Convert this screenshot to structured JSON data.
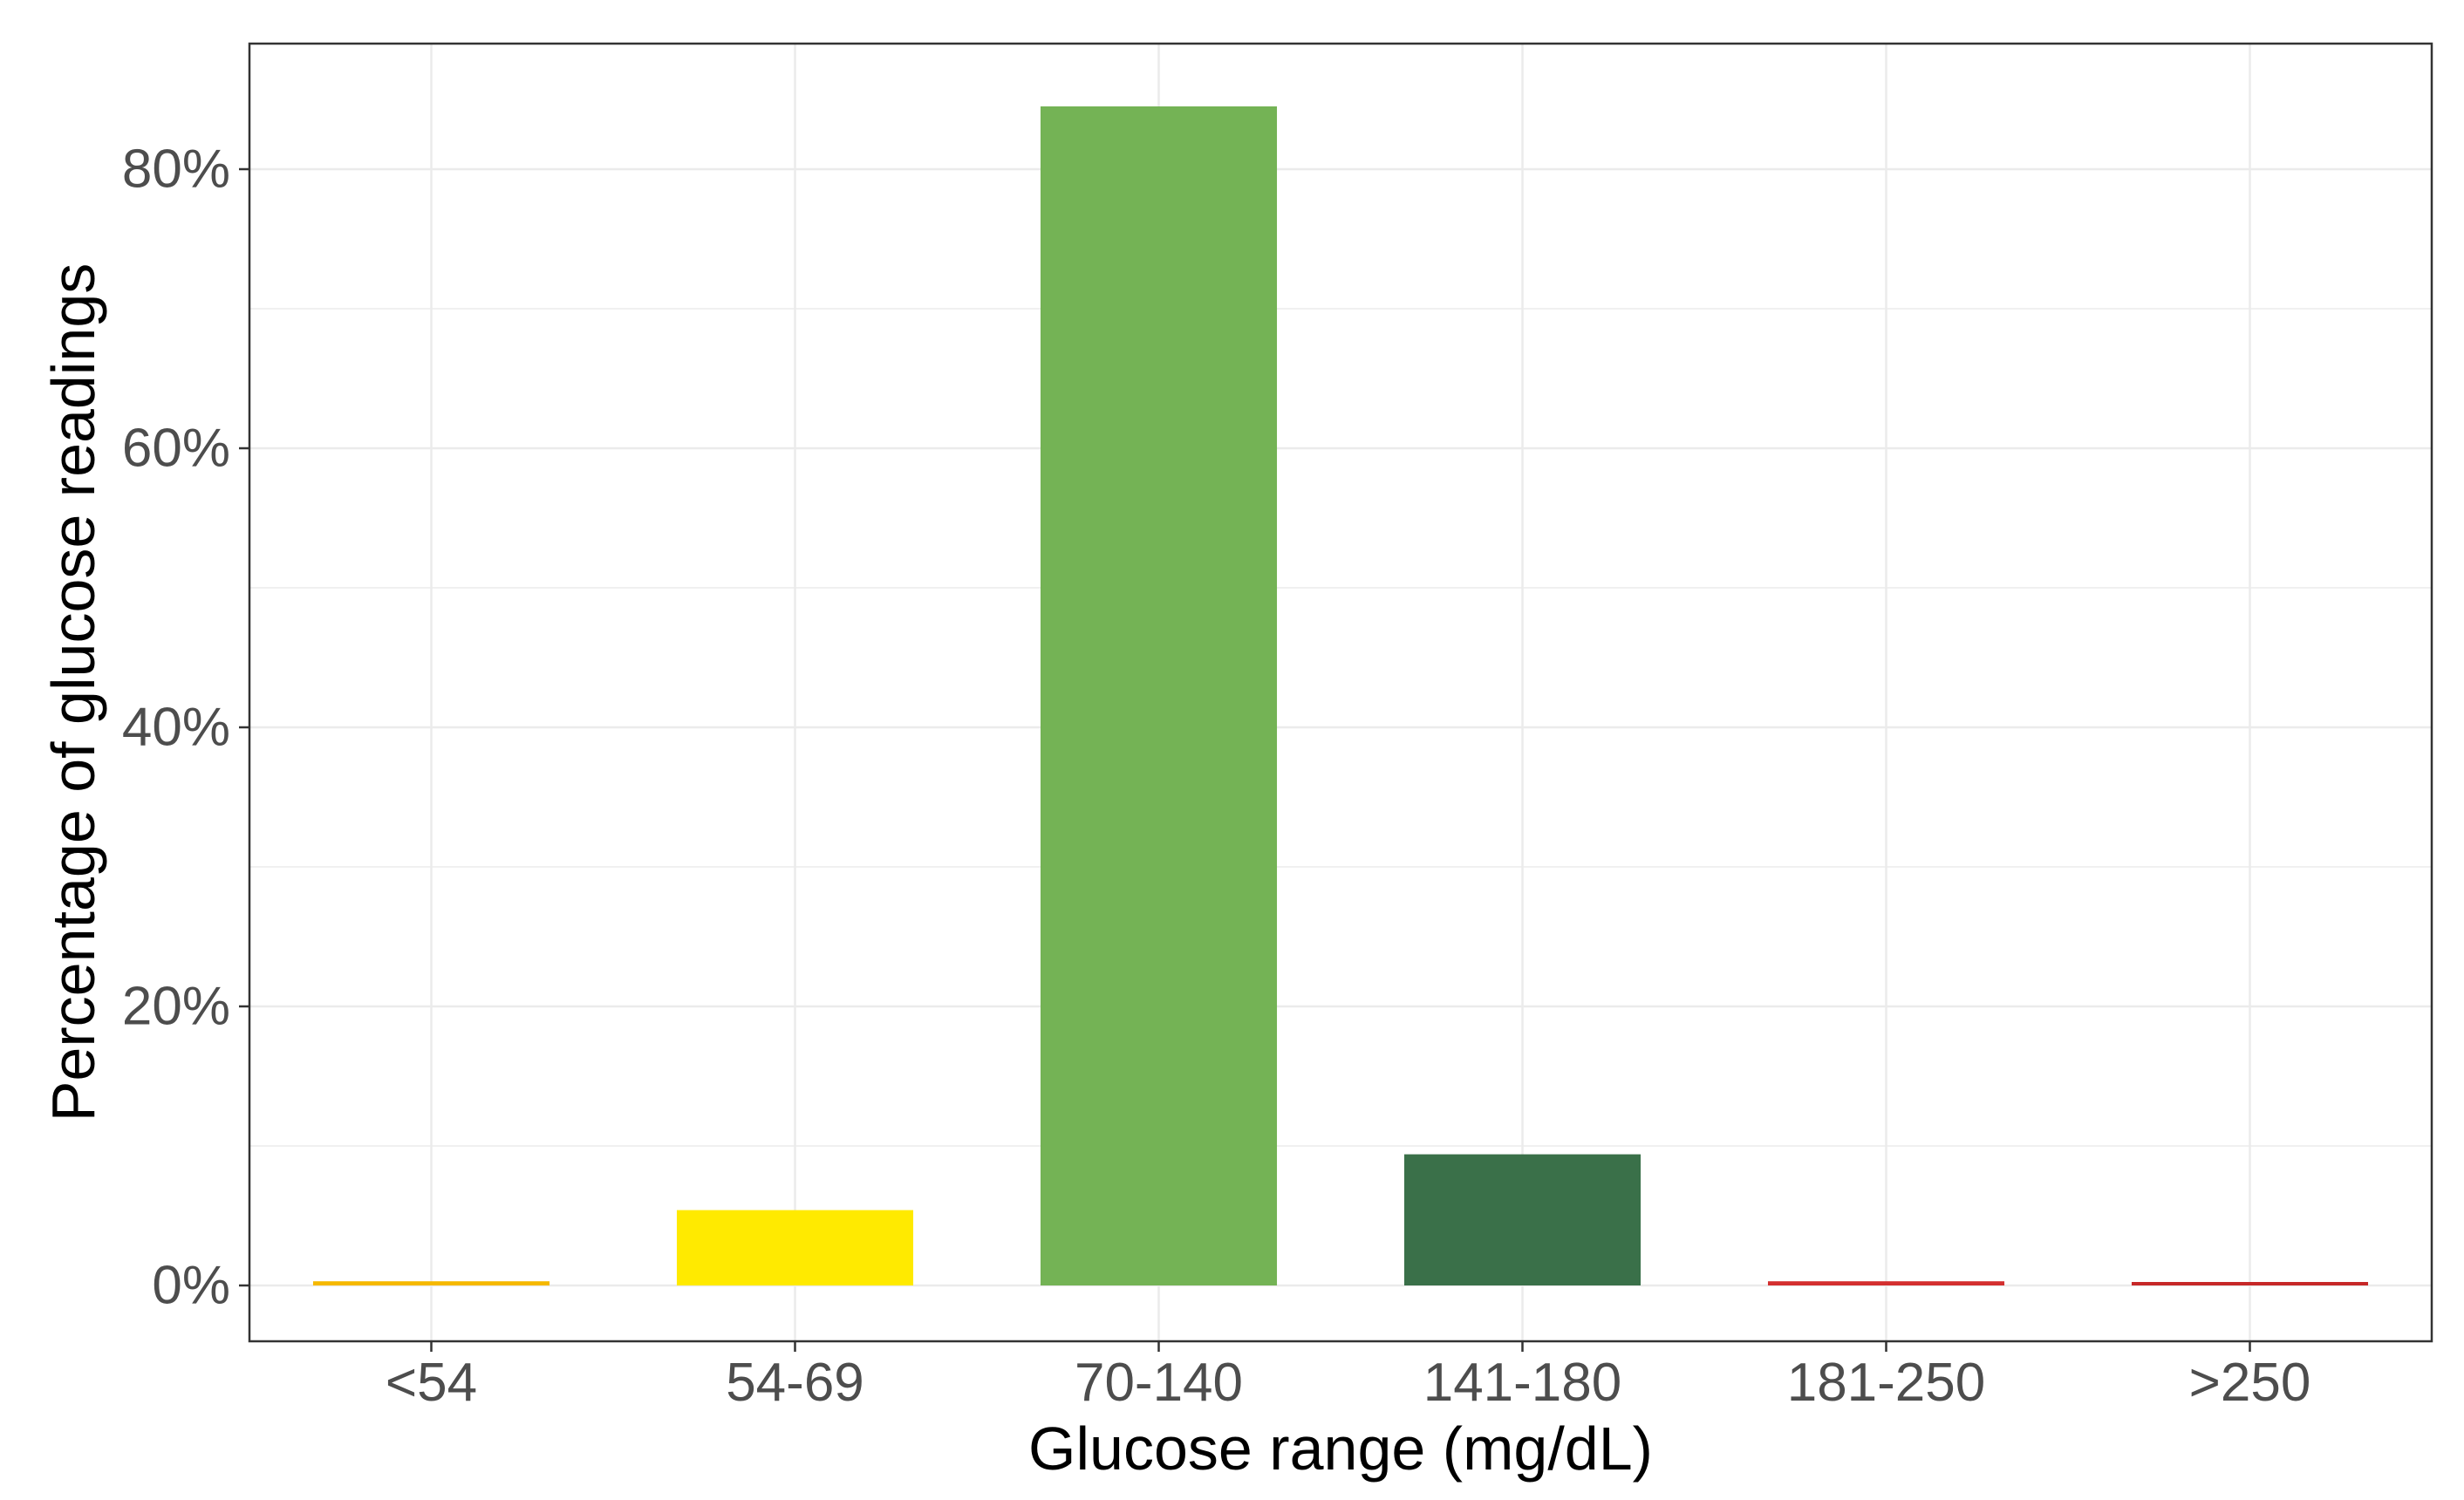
{
  "chart_data": {
    "type": "bar",
    "title": "",
    "xlabel": "Glucose range (mg/dL)",
    "ylabel": "Percentage of glucose readings",
    "categories": [
      "<54",
      "54-69",
      "70-140",
      "141-180",
      "181-250",
      ">250"
    ],
    "values": [
      0.3,
      5.4,
      84.5,
      9.4,
      0.3,
      0.2
    ],
    "bar_colors": [
      "#F5B800",
      "#FFEA00",
      "#74B355",
      "#3A7049",
      "#D32F2F",
      "#C62828"
    ],
    "ylim": [
      -4,
      89
    ],
    "y_ticks": [
      0,
      20,
      40,
      60,
      80
    ],
    "y_tick_labels": [
      "0%",
      "20%",
      "40%",
      "60%",
      "80%"
    ],
    "y_minor_ticks": [
      10,
      30,
      50,
      70
    ],
    "grid": true,
    "legend": "none",
    "colors": {
      "grid": "#EBEBEB",
      "panel_border": "#333333",
      "tick_text": "#4D4D4D",
      "axis_title": "#000000"
    }
  }
}
